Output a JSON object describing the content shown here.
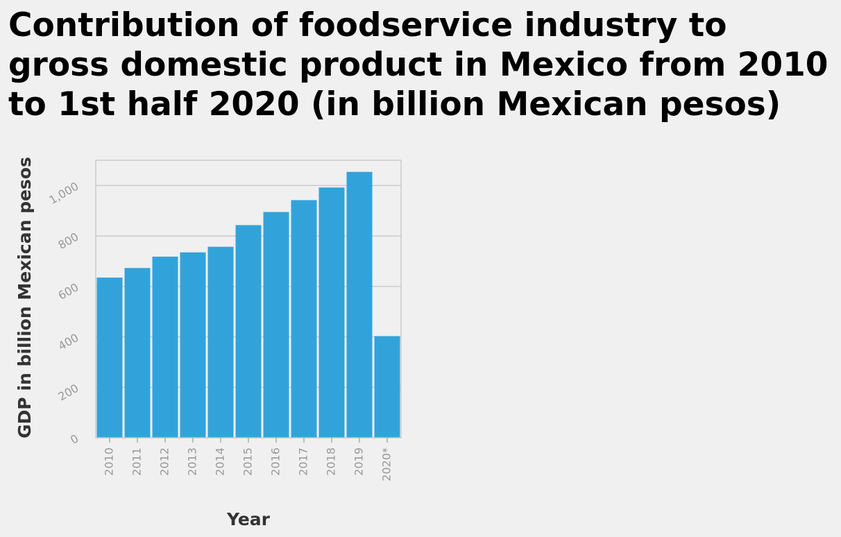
{
  "chart_data": {
    "type": "bar",
    "title": "Contribution of foodservice industry to\ngross domestic product in Mexico from 2010\nto 1st half 2020 (in billion Mexican pesos)",
    "xlabel": "Year",
    "ylabel": "GDP in billion Mexican pesos",
    "categories": [
      "2010",
      "2011",
      "2012",
      "2013",
      "2014",
      "2015",
      "2016",
      "2017",
      "2018",
      "2019",
      "2020*"
    ],
    "values": [
      635,
      673,
      718,
      735,
      757,
      843,
      895,
      942,
      992,
      1054,
      403
    ],
    "ylim": [
      0,
      1100
    ],
    "yticks": [
      0,
      200,
      400,
      600,
      800,
      1000
    ],
    "ytick_labels": [
      "0",
      "200",
      "400",
      "600",
      "800",
      "1,000"
    ],
    "grid": true,
    "bar_color": "#32a3da",
    "grid_color": "#cbcbcb",
    "background": "#f0f0f0"
  }
}
